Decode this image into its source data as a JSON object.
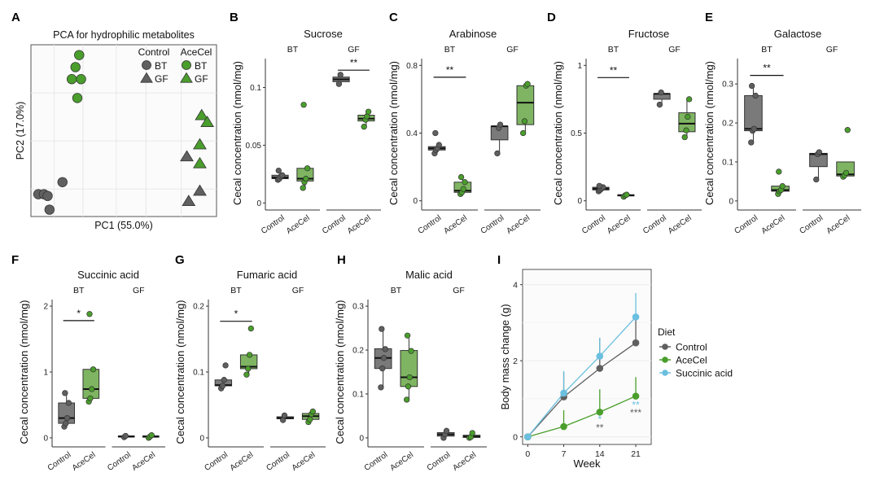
{
  "chart_data": [
    {
      "id": "A",
      "type": "scatter",
      "panel_label": "A",
      "title": "PCA for hydrophilic metabolites",
      "xlabel": "PC1 (55.0%)",
      "ylabel": "PC2 (17.0%)",
      "xlim": [
        0,
        10
      ],
      "ylim": [
        0,
        10
      ],
      "grid": true,
      "legend": {
        "placement": "top-right",
        "group_titles": [
          "Control",
          "AceCel"
        ],
        "entries": [
          {
            "diet": "Control",
            "label": "BT",
            "shape": "circle"
          },
          {
            "diet": "Control",
            "label": "GF",
            "shape": "triangle"
          },
          {
            "diet": "AceCel",
            "label": "BT",
            "shape": "circle"
          },
          {
            "diet": "AceCel",
            "label": "GF",
            "shape": "triangle"
          }
        ]
      },
      "series": [
        {
          "name": "Control BT",
          "shape": "circle",
          "color": "#606060",
          "points": [
            [
              0.4,
              1.3
            ],
            [
              0.7,
              1.3
            ],
            [
              0.9,
              1.2
            ],
            [
              1.0,
              0.4
            ],
            [
              1.7,
              2.0
            ]
          ]
        },
        {
          "name": "AceCel BT",
          "shape": "circle",
          "color": "#4a9e2c",
          "points": [
            [
              2.6,
              9.4
            ],
            [
              2.4,
              8.7
            ],
            [
              2.2,
              8.0
            ],
            [
              2.7,
              8.0
            ],
            [
              2.5,
              6.9
            ]
          ]
        },
        {
          "name": "Control GF",
          "shape": "triangle",
          "color": "#606060",
          "points": [
            [
              8.4,
              3.5
            ],
            [
              9.1,
              1.5
            ],
            [
              8.5,
              0.9
            ]
          ]
        },
        {
          "name": "AceCel GF",
          "shape": "triangle",
          "color": "#4a9e2c",
          "points": [
            [
              9.2,
              5.9
            ],
            [
              9.5,
              5.5
            ],
            [
              9.1,
              4.2
            ],
            [
              9.1,
              3.1
            ]
          ]
        }
      ]
    },
    {
      "id": "B",
      "type": "box",
      "panel_label": "B",
      "title": "Sucrose",
      "ylabel": "Cecal concentration (nmol/mg)",
      "ylim": [
        -0.004,
        0.125
      ],
      "yticks": [
        0,
        0.05,
        0.1
      ],
      "ytick_labels": [
        "0",
        "0.05",
        "0.1"
      ],
      "facets": [
        {
          "label": "BT",
          "groups": [
            {
              "name": "Control",
              "box": [
                0.02,
                0.021,
                0.022,
                0.024,
                0.028
              ],
              "points": [
                0.02,
                0.021,
                0.023,
                0.024,
                0.028
              ]
            },
            {
              "name": "AceCel",
              "box": [
                0.013,
                0.019,
                0.021,
                0.03,
                0.03
              ],
              "points": [
                0.013,
                0.018,
                0.021,
                0.03,
                0.085
              ]
            }
          ],
          "sig": null
        },
        {
          "label": "GF",
          "groups": [
            {
              "name": "Control",
              "box": [
                0.103,
                0.105,
                0.107,
                0.109,
                0.111
              ],
              "points": [
                0.103,
                0.111
              ]
            },
            {
              "name": "AceCel",
              "box": [
                0.066,
                0.071,
                0.073,
                0.076,
                0.079
              ],
              "points": [
                0.066,
                0.072,
                0.075,
                0.079
              ]
            }
          ],
          "sig": {
            "label": "**",
            "y": 0.115
          }
        }
      ]
    },
    {
      "id": "C",
      "type": "box",
      "panel_label": "C",
      "title": "Arabinose",
      "ylabel": "Cecal concentration (nmol/mg)",
      "ylim": [
        -0.04,
        0.84
      ],
      "yticks": [
        0,
        0.4,
        0.8
      ],
      "ytick_labels": [
        "0",
        "0.4",
        "0.8"
      ],
      "facets": [
        {
          "label": "BT",
          "groups": [
            {
              "name": "Control",
              "box": [
                0.28,
                0.3,
                0.31,
                0.32,
                0.33
              ],
              "points": [
                0.28,
                0.3,
                0.31,
                0.33,
                0.4
              ]
            },
            {
              "name": "AceCel",
              "box": [
                0.04,
                0.05,
                0.06,
                0.11,
                0.14
              ],
              "points": [
                0.04,
                0.05,
                0.07,
                0.11,
                0.14
              ]
            }
          ],
          "sig": {
            "label": "**",
            "y": 0.73
          }
        },
        {
          "label": "GF",
          "groups": [
            {
              "name": "Control",
              "box": [
                0.28,
                0.36,
                0.44,
                0.44,
                0.45
              ],
              "points": [
                0.28,
                0.43,
                0.45
              ]
            },
            {
              "name": "AceCel",
              "box": [
                0.4,
                0.45,
                0.58,
                0.68,
                0.69
              ],
              "points": [
                0.4,
                0.47,
                0.68,
                0.69
              ]
            }
          ],
          "sig": null
        }
      ]
    },
    {
      "id": "D",
      "type": "box",
      "panel_label": "D",
      "title": "Fructose",
      "ylabel": "Cecal concentration (nmol/mg)",
      "ylim": [
        -0.05,
        1.05
      ],
      "yticks": [
        0,
        0.5,
        1
      ],
      "ytick_labels": [
        "0",
        "0.5",
        "1"
      ],
      "facets": [
        {
          "label": "BT",
          "groups": [
            {
              "name": "Control",
              "box": [
                0.07,
                0.08,
                0.09,
                0.1,
                0.11
              ],
              "points": [
                0.07,
                0.08,
                0.09,
                0.1,
                0.11
              ]
            },
            {
              "name": "AceCel",
              "box": [
                0.03,
                0.04,
                0.04,
                0.045,
                0.05
              ],
              "points": [
                0.03,
                0.04,
                0.045
              ]
            }
          ],
          "sig": {
            "label": "**",
            "y": 0.91
          }
        },
        {
          "label": "GF",
          "groups": [
            {
              "name": "Control",
              "box": [
                0.71,
                0.75,
                0.79,
                0.79,
                0.8
              ],
              "points": [
                0.71,
                0.8
              ]
            },
            {
              "name": "AceCel",
              "box": [
                0.47,
                0.51,
                0.57,
                0.65,
                0.75
              ],
              "points": [
                0.47,
                0.52,
                0.62,
                0.75
              ]
            }
          ],
          "sig": null
        }
      ]
    },
    {
      "id": "E",
      "type": "box",
      "panel_label": "E",
      "title": "Galactose",
      "ylabel": "Cecal concentration (nmol/mg)",
      "ylim": [
        -0.017,
        0.365
      ],
      "yticks": [
        0,
        0.1,
        0.2,
        0.3
      ],
      "ytick_labels": [
        "0",
        "0.1",
        "0.2",
        "0.3"
      ],
      "facets": [
        {
          "label": "BT",
          "groups": [
            {
              "name": "Control",
              "box": [
                0.15,
                0.18,
                0.185,
                0.27,
                0.295
              ],
              "points": [
                0.15,
                0.18,
                0.185,
                0.27,
                0.295
              ]
            },
            {
              "name": "AceCel",
              "box": [
                0.018,
                0.025,
                0.028,
                0.038,
                0.038
              ],
              "points": [
                0.018,
                0.025,
                0.028,
                0.038,
                0.075
              ]
            }
          ],
          "sig": {
            "label": "**",
            "y": 0.322
          }
        },
        {
          "label": "GF",
          "groups": [
            {
              "name": "Control",
              "box": [
                0.055,
                0.088,
                0.12,
                0.122,
                0.125
              ],
              "points": [
                0.055,
                0.12,
                0.125
              ]
            },
            {
              "name": "AceCel",
              "box": [
                0.062,
                0.064,
                0.068,
                0.1,
                0.1
              ],
              "points": [
                0.062,
                0.066,
                0.072,
                0.182
              ]
            }
          ],
          "sig": null
        }
      ]
    },
    {
      "id": "F",
      "type": "box",
      "panel_label": "F",
      "title": "Succinic acid",
      "ylabel": "Cecal concentration (nmol/mg)",
      "ylim": [
        -0.1,
        2.1
      ],
      "yticks": [
        0,
        1,
        2
      ],
      "ytick_labels": [
        "0",
        "1",
        "2"
      ],
      "facets": [
        {
          "label": "BT",
          "groups": [
            {
              "name": "Control",
              "box": [
                0.17,
                0.22,
                0.3,
                0.53,
                0.68
              ],
              "points": [
                0.17,
                0.22,
                0.3,
                0.53,
                0.68
              ]
            },
            {
              "name": "AceCel",
              "box": [
                0.55,
                0.6,
                0.74,
                1.04,
                1.04
              ],
              "points": [
                0.55,
                0.6,
                0.74,
                1.04,
                1.88
              ]
            }
          ],
          "sig": {
            "label": "*",
            "y": 1.78
          }
        },
        {
          "label": "GF",
          "groups": [
            {
              "name": "Control",
              "box": [
                0.01,
                0.02,
                0.02,
                0.03,
                0.04
              ],
              "points": [
                0.01,
                0.03
              ]
            },
            {
              "name": "AceCel",
              "box": [
                0.0,
                0.01,
                0.02,
                0.03,
                0.04
              ],
              "points": [
                0.0,
                0.02,
                0.04
              ]
            }
          ],
          "sig": null
        }
      ]
    },
    {
      "id": "G",
      "type": "box",
      "panel_label": "G",
      "title": "Fumaric acid",
      "ylabel": "Cecal concentration (nmol/mg)",
      "ylim": [
        -0.01,
        0.21
      ],
      "yticks": [
        0,
        0.1,
        0.2
      ],
      "ytick_labels": [
        "0",
        "0.1",
        "0.2"
      ],
      "facets": [
        {
          "label": "BT",
          "groups": [
            {
              "name": "Control",
              "box": [
                0.075,
                0.079,
                0.08,
                0.088,
                0.088
              ],
              "points": [
                0.075,
                0.079,
                0.088,
                0.11
              ]
            },
            {
              "name": "AceCel",
              "box": [
                0.096,
                0.105,
                0.108,
                0.126,
                0.126
              ],
              "points": [
                0.096,
                0.105,
                0.126,
                0.166
              ]
            }
          ],
          "sig": {
            "label": "*",
            "y": 0.177
          }
        },
        {
          "label": "GF",
          "groups": [
            {
              "name": "Control",
              "box": [
                0.027,
                0.029,
                0.03,
                0.032,
                0.034
              ],
              "points": [
                0.027,
                0.034
              ]
            },
            {
              "name": "AceCel",
              "box": [
                0.024,
                0.028,
                0.033,
                0.037,
                0.04
              ],
              "points": [
                0.024,
                0.028,
                0.036,
                0.04
              ]
            }
          ],
          "sig": null
        }
      ]
    },
    {
      "id": "H",
      "type": "box",
      "panel_label": "H",
      "title": "Malic acid",
      "ylabel": "Cecal concentration (nmol/mg)",
      "ylim": [
        -0.015,
        0.315
      ],
      "yticks": [
        0,
        0.1,
        0.2,
        0.3
      ],
      "ytick_labels": [
        "0",
        "0.1",
        "0.2",
        "0.3"
      ],
      "facets": [
        {
          "label": "BT",
          "groups": [
            {
              "name": "Control",
              "box": [
                0.115,
                0.158,
                0.182,
                0.203,
                0.248
              ],
              "points": [
                0.115,
                0.158,
                0.182,
                0.202,
                0.248
              ]
            },
            {
              "name": "AceCel",
              "box": [
                0.087,
                0.117,
                0.138,
                0.199,
                0.233
              ],
              "points": [
                0.087,
                0.117,
                0.138,
                0.198,
                0.233
              ]
            }
          ],
          "sig": null
        },
        {
          "label": "GF",
          "groups": [
            {
              "name": "Control",
              "box": [
                0.0,
                0.004,
                0.008,
                0.012,
                0.016
              ],
              "points": [
                0.0,
                0.008,
                0.016
              ]
            },
            {
              "name": "AceCel",
              "box": [
                0.0,
                0.001,
                0.003,
                0.006,
                0.011
              ],
              "points": [
                0.0,
                0.002,
                0.011
              ]
            }
          ],
          "sig": null
        }
      ]
    },
    {
      "id": "I",
      "type": "line",
      "panel_label": "I",
      "xlabel": "Week",
      "ylabel": "Body mass change (g)",
      "x": [
        0,
        7,
        14,
        21
      ],
      "xticks": [
        0,
        7,
        14,
        21
      ],
      "xtick_labels": [
        "0",
        "7",
        "14",
        "21"
      ],
      "yticks": [
        0,
        2,
        4
      ],
      "ytick_labels": [
        "0",
        "2",
        "4"
      ],
      "xlim": [
        -1,
        24
      ],
      "ylim": [
        -0.2,
        4.4
      ],
      "grid": true,
      "legend": {
        "title": "Diet",
        "placement": "right"
      },
      "series": [
        {
          "name": "Control",
          "color": "#5f5f5f",
          "values": [
            0,
            1.05,
            1.8,
            2.47
          ],
          "err_upper": [
            0,
            1.7,
            2.6,
            3.2
          ]
        },
        {
          "name": "AceCel",
          "color": "#4a9e2c",
          "values": [
            0,
            0.27,
            0.65,
            1.07
          ],
          "err_upper": [
            0,
            0.7,
            1.25,
            1.57
          ]
        },
        {
          "name": "Succinic acid",
          "color": "#6bbfdf",
          "values": [
            0,
            1.15,
            2.12,
            3.15
          ],
          "err_upper": [
            0,
            1.73,
            2.6,
            3.78
          ]
        }
      ],
      "annotations": [
        {
          "x": 14,
          "label": "*",
          "color": "#6bbfdf",
          "y": 0.38
        },
        {
          "x": 14,
          "label": "**",
          "color": "#5f5f5f",
          "y": 0.15
        },
        {
          "x": 21,
          "label": "**",
          "color": "#6bbfdf",
          "y": 0.75
        },
        {
          "x": 21,
          "label": "***",
          "color": "#5f5f5f",
          "y": 0.55
        }
      ]
    }
  ],
  "colors": {
    "control_fill": "#7a7a7a",
    "control_point": "#5f5f5f",
    "acecel_fill": "#7fb562",
    "acecel_point": "#4a9e2c",
    "succinic": "#6bbfdf",
    "axis": "#333333"
  },
  "group_labels": [
    "Control",
    "AceCel"
  ]
}
